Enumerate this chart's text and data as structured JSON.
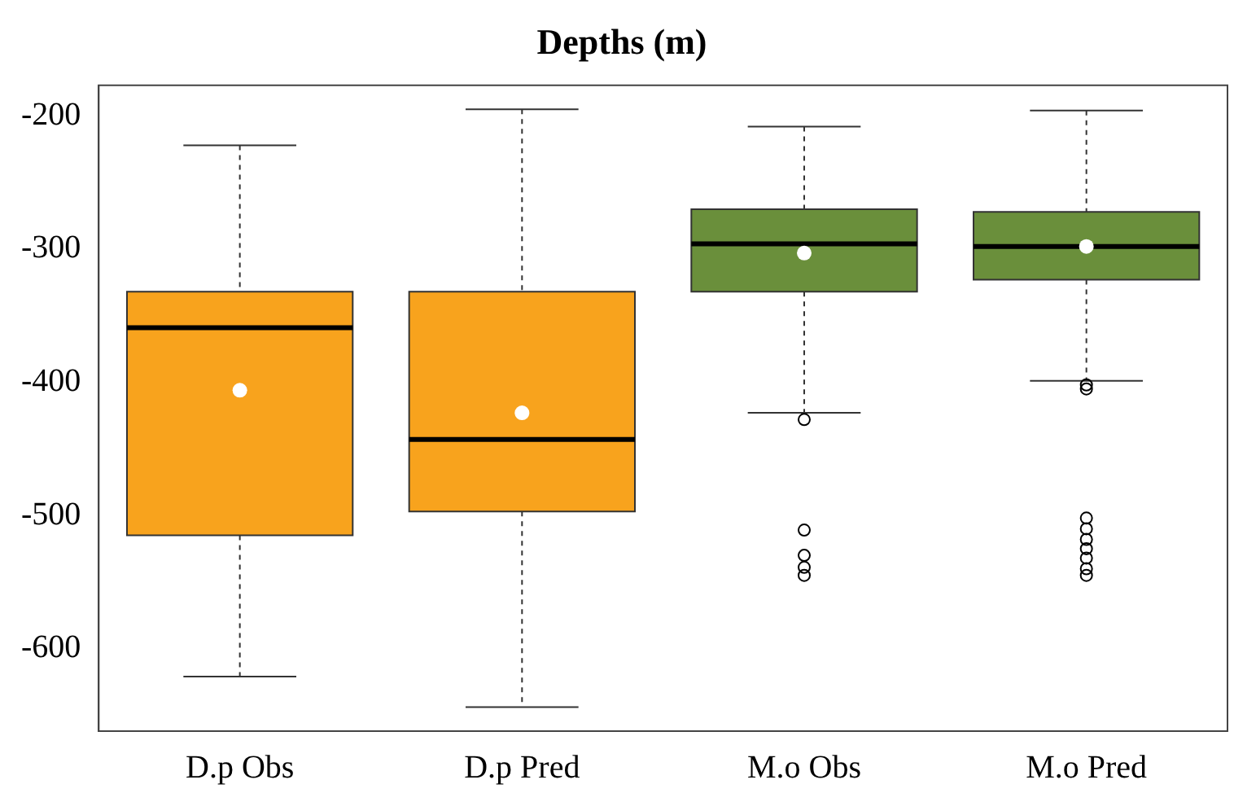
{
  "chart_data": {
    "type": "box",
    "title": "Depths (m)",
    "categories": [
      "D.p Obs",
      "D.p Pred",
      "M.o Obs",
      "M.o Pred"
    ],
    "colors": [
      "#f8a31d",
      "#f8a31d",
      "#6a8f3b",
      "#6a8f3b"
    ],
    "boxes": [
      {
        "low": -621,
        "q1": -515,
        "median": -359,
        "q3": -332,
        "high": -222,
        "mean": -406
      },
      {
        "low": -644,
        "q1": -497,
        "median": -443,
        "q3": -332,
        "high": -195,
        "mean": -423
      },
      {
        "low": -423,
        "q1": -332,
        "median": -296,
        "q3": -270,
        "high": -208,
        "mean": -303,
        "outliers": [
          -428,
          -511,
          -530,
          -539,
          -545
        ]
      },
      {
        "low": -399,
        "q1": -323,
        "median": -298,
        "q3": -272,
        "high": -196,
        "mean": -298,
        "outliers": [
          -402,
          -405,
          -502,
          -510,
          -518,
          -525,
          -532,
          -540,
          -545
        ]
      }
    ],
    "ylim": [
      -662,
      -177
    ],
    "yticks": [
      -200,
      -300,
      -400,
      -500,
      -600
    ],
    "grid": false,
    "legend": false
  }
}
